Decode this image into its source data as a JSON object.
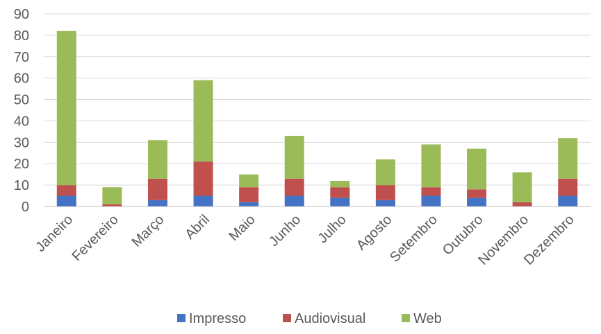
{
  "chart_data": {
    "type": "bar",
    "stacked": true,
    "categories": [
      "Janeiro",
      "Fevereiro",
      "Março",
      "Abril",
      "Maio",
      "Junho",
      "Julho",
      "Agosto",
      "Setembro",
      "Outubro",
      "Novembro",
      "Dezembro"
    ],
    "series": [
      {
        "name": "Impresso",
        "color": "#4472C4",
        "values": [
          5,
          0,
          3,
          5,
          2,
          5,
          4,
          3,
          5,
          4,
          0,
          5
        ]
      },
      {
        "name": "Audiovisual",
        "color": "#C0504D",
        "values": [
          5,
          1,
          10,
          16,
          7,
          8,
          5,
          7,
          4,
          4,
          2,
          8
        ]
      },
      {
        "name": "Web",
        "color": "#9BBB59",
        "values": [
          72,
          8,
          18,
          38,
          6,
          20,
          3,
          12,
          20,
          19,
          14,
          19
        ]
      }
    ],
    "ylim": [
      0,
      90
    ],
    "yticks": [
      0,
      10,
      20,
      30,
      40,
      50,
      60,
      70,
      80,
      90
    ],
    "grid": true,
    "legend_position": "bottom",
    "title": "",
    "xlabel": "",
    "ylabel": ""
  }
}
